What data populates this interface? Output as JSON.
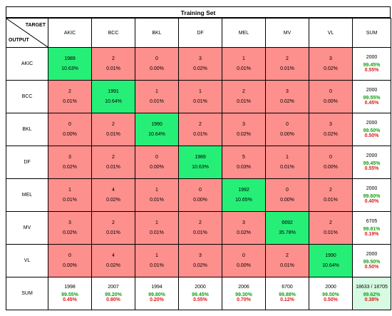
{
  "chart_data": {
    "type": "heatmap",
    "title": "Training Set",
    "corner_top_label": "TARGET",
    "corner_bottom_label": "OUTPUT",
    "sum_label": "SUM",
    "columns": [
      "AKIC",
      "BCC",
      "BKL",
      "DF",
      "MEL",
      "MV",
      "VL"
    ],
    "rows": [
      "AKIC",
      "BCC",
      "BKL",
      "DF",
      "MEL",
      "MV",
      "VL"
    ],
    "counts": [
      [
        1989,
        2,
        0,
        3,
        1,
        2,
        3
      ],
      [
        2,
        1991,
        1,
        1,
        2,
        3,
        0
      ],
      [
        0,
        2,
        1990,
        2,
        3,
        0,
        3
      ],
      [
        3,
        2,
        0,
        1989,
        5,
        1,
        0
      ],
      [
        1,
        4,
        1,
        0,
        1992,
        0,
        2
      ],
      [
        3,
        2,
        1,
        2,
        3,
        6692,
        2
      ],
      [
        0,
        4,
        1,
        3,
        0,
        2,
        1990
      ]
    ],
    "percents": [
      [
        "10.63%",
        "0.01%",
        "0.00%",
        "0.02%",
        "0.01%",
        "0.01%",
        "0.02%"
      ],
      [
        "0.01%",
        "10.64%",
        "0.01%",
        "0.01%",
        "0.01%",
        "0.02%",
        "0.00%"
      ],
      [
        "0.00%",
        "0.01%",
        "10.64%",
        "0.01%",
        "0.02%",
        "0.00%",
        "0.02%"
      ],
      [
        "0.02%",
        "0.01%",
        "0.00%",
        "10.63%",
        "0.03%",
        "0.01%",
        "0.00%"
      ],
      [
        "0.01%",
        "0.02%",
        "0.01%",
        "0.00%",
        "10.65%",
        "0.00%",
        "0.01%"
      ],
      [
        "0.02%",
        "0.01%",
        "0.01%",
        "0.01%",
        "0.02%",
        "35.78%",
        "0.01%"
      ],
      [
        "0.00%",
        "0.02%",
        "0.01%",
        "0.02%",
        "0.00%",
        "0.01%",
        "10.64%"
      ]
    ],
    "row_sums": [
      {
        "total": "2000",
        "correct": "99.45%",
        "error": "0.55%"
      },
      {
        "total": "2000",
        "correct": "99.55%",
        "error": "0.45%"
      },
      {
        "total": "2000",
        "correct": "99.50%",
        "error": "0.50%"
      },
      {
        "total": "2000",
        "correct": "99.45%",
        "error": "0.55%"
      },
      {
        "total": "2000",
        "correct": "99.60%",
        "error": "0.40%"
      },
      {
        "total": "6705",
        "correct": "99.81%",
        "error": "0.19%"
      },
      {
        "total": "2000",
        "correct": "99.50%",
        "error": "0.50%"
      }
    ],
    "col_sums": [
      {
        "total": "1998",
        "correct": "99.55%",
        "error": "0.45%"
      },
      {
        "total": "2007",
        "correct": "99.20%",
        "error": "0.80%"
      },
      {
        "total": "1994",
        "correct": "99.80%",
        "error": "0.20%"
      },
      {
        "total": "2000",
        "correct": "99.45%",
        "error": "0.55%"
      },
      {
        "total": "2006",
        "correct": "99.30%",
        "error": "0.70%"
      },
      {
        "total": "6700",
        "correct": "99.88%",
        "error": "0.12%"
      },
      {
        "total": "2000",
        "correct": "99.50%",
        "error": "0.50%"
      }
    ],
    "overall": {
      "total": "18633 / 18705",
      "correct": "99.62%",
      "error": "0.38%"
    },
    "colors": {
      "diagonal": "#26ef77",
      "off_diagonal": "#fd8f8c",
      "total_cell": "#d6fbe2",
      "correct_text": "#15a015",
      "error_text": "#e0191b"
    }
  }
}
